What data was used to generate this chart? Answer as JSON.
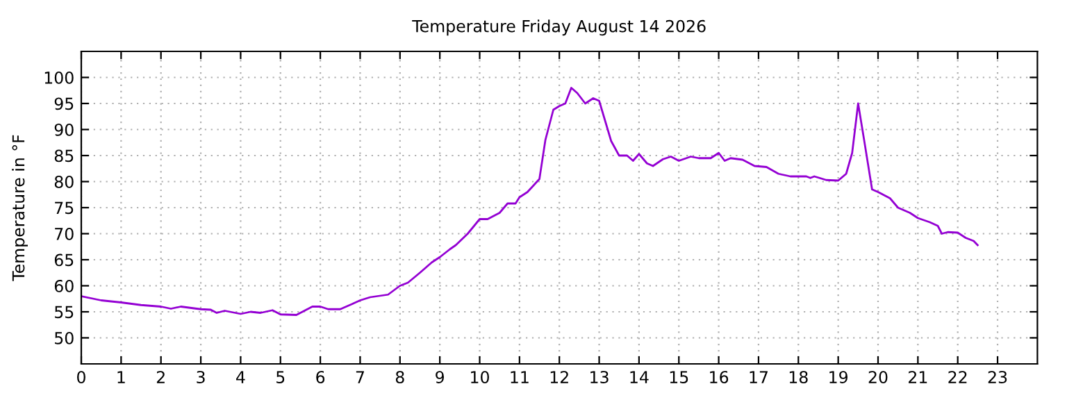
{
  "chart_data": {
    "type": "line",
    "title": "Temperature Friday August 14 2026",
    "ylabel": "Temperature in °F",
    "x": [
      0,
      0.5,
      1,
      1.5,
      2,
      2.25,
      2.5,
      3,
      3.25,
      3.4,
      3.6,
      4,
      4.25,
      4.5,
      4.8,
      5,
      5.4,
      5.6,
      5.8,
      6,
      6.2,
      6.5,
      6.8,
      7,
      7.25,
      7.7,
      8,
      8.2,
      8.5,
      8.8,
      9,
      9.25,
      9.4,
      9.7,
      10,
      10.2,
      10.5,
      10.7,
      10.9,
      11,
      11.2,
      11.5,
      11.65,
      11.85,
      12,
      12.15,
      12.3,
      12.45,
      12.65,
      12.85,
      13,
      13.3,
      13.5,
      13.7,
      13.85,
      14,
      14.2,
      14.35,
      14.6,
      14.8,
      15,
      15.3,
      15.5,
      15.8,
      16,
      16.15,
      16.3,
      16.6,
      16.9,
      17.2,
      17.5,
      17.8,
      18.2,
      18.3,
      18.4,
      18.7,
      19,
      19.2,
      19.35,
      19.5,
      19.65,
      19.85,
      20,
      20.3,
      20.5,
      20.8,
      21,
      21.3,
      21.5,
      21.6,
      21.75,
      22,
      22.2,
      22.4,
      22.5
    ],
    "series": [
      {
        "color": "#9400d3",
        "values": [
          58,
          57.2,
          56.8,
          56.3,
          56,
          55.6,
          56,
          55.5,
          55.4,
          54.8,
          55.2,
          54.6,
          55,
          54.8,
          55.3,
          54.5,
          54.4,
          55.2,
          56,
          56,
          55.5,
          55.5,
          56.5,
          57.2,
          57.8,
          58.3,
          60,
          60.6,
          62.5,
          64.5,
          65.5,
          67,
          67.8,
          70,
          72.8,
          72.8,
          74,
          75.8,
          75.8,
          77,
          78,
          80.5,
          88,
          93.8,
          94.5,
          95,
          98,
          97,
          95,
          96,
          95.5,
          87.8,
          85,
          85,
          84,
          85.3,
          83.5,
          83,
          84.3,
          84.8,
          84,
          84.8,
          84.5,
          84.5,
          85.5,
          84,
          84.5,
          84.2,
          83,
          82.8,
          81.5,
          81,
          81,
          80.7,
          81,
          80.3,
          80.2,
          81.5,
          85.5,
          95,
          88,
          78.5,
          78,
          76.8,
          75,
          74,
          73,
          72.2,
          71.5,
          70,
          70.3,
          70.2,
          69.2,
          68.6,
          67.8
        ]
      }
    ],
    "xlim": [
      0,
      24
    ],
    "xticks": [
      0,
      1,
      2,
      3,
      4,
      5,
      6,
      7,
      8,
      9,
      10,
      11,
      12,
      13,
      14,
      15,
      16,
      17,
      18,
      19,
      20,
      21,
      22,
      23
    ],
    "ylim": [
      45,
      105
    ],
    "yticks": [
      50,
      55,
      60,
      65,
      70,
      75,
      80,
      85,
      90,
      95,
      100
    ],
    "grid": true,
    "marker": "none",
    "line_style": "solid"
  }
}
